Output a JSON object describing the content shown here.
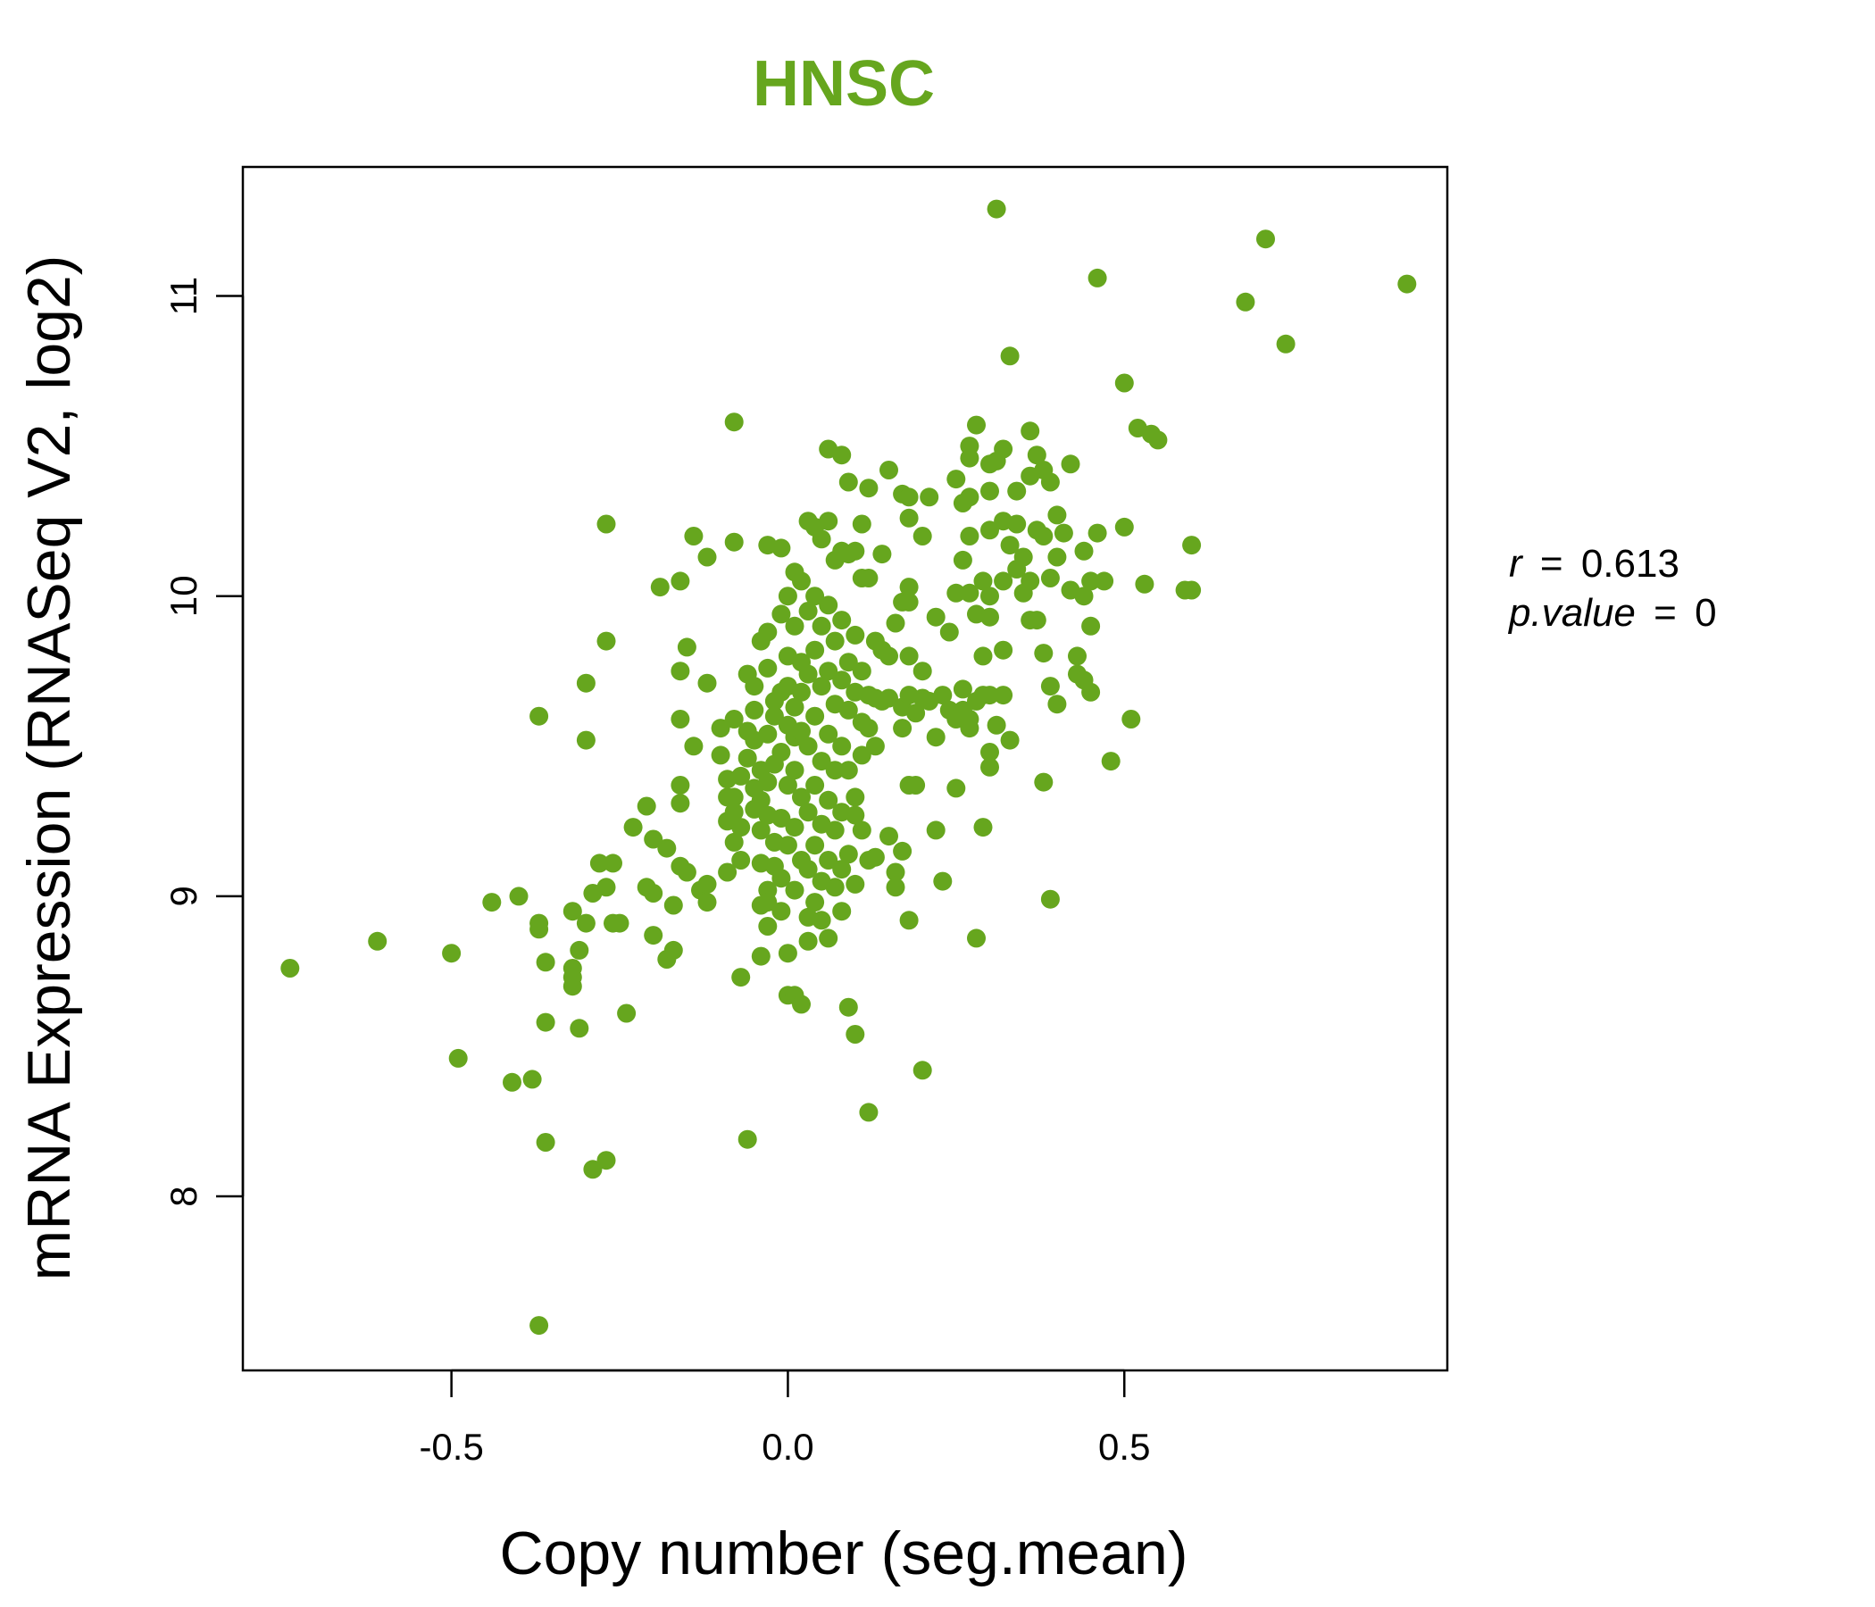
{
  "chart_data": {
    "type": "scatter",
    "title": "HNSC",
    "xlabel": "Copy number (seg.mean)",
    "ylabel": "mRNA Expression (RNASeq V2, log2)",
    "xlim": [
      -0.81,
      0.98
    ],
    "ylim": [
      7.42,
      11.43
    ],
    "xticks": [
      -0.5,
      0.0,
      0.5
    ],
    "xtick_labels": [
      "-0.5",
      "0.0",
      "0.5"
    ],
    "yticks": [
      8,
      9,
      10,
      11
    ],
    "ytick_labels": [
      "8",
      "9",
      "10",
      "11"
    ],
    "grid": false,
    "point_color": "#66a61e",
    "stats": {
      "r_symbol": "r",
      "r_value": "0.613",
      "p_symbol": "p.value",
      "p_value": "0",
      "equals": "="
    },
    "points": [
      [
        -0.74,
        8.76
      ],
      [
        -0.61,
        8.85
      ],
      [
        -0.5,
        8.81
      ],
      [
        -0.49,
        8.46
      ],
      [
        -0.44,
        8.98
      ],
      [
        -0.41,
        8.38
      ],
      [
        -0.4,
        9.0
      ],
      [
        -0.38,
        8.39
      ],
      [
        -0.37,
        8.91
      ],
      [
        -0.37,
        8.89
      ],
      [
        -0.37,
        9.6
      ],
      [
        -0.37,
        7.57
      ],
      [
        -0.36,
        8.78
      ],
      [
        -0.36,
        8.58
      ],
      [
        -0.36,
        8.18
      ],
      [
        -0.32,
        8.95
      ],
      [
        -0.32,
        8.76
      ],
      [
        -0.32,
        8.7
      ],
      [
        -0.32,
        8.73
      ],
      [
        -0.31,
        8.56
      ],
      [
        -0.31,
        8.82
      ],
      [
        -0.3,
        8.91
      ],
      [
        -0.3,
        9.52
      ],
      [
        -0.3,
        9.71
      ],
      [
        -0.29,
        9.01
      ],
      [
        -0.29,
        8.09
      ],
      [
        -0.28,
        9.11
      ],
      [
        -0.27,
        10.24
      ],
      [
        -0.27,
        9.85
      ],
      [
        -0.27,
        9.03
      ],
      [
        -0.27,
        8.12
      ],
      [
        -0.26,
        9.11
      ],
      [
        -0.26,
        8.91
      ],
      [
        -0.25,
        8.91
      ],
      [
        -0.24,
        8.61
      ],
      [
        -0.23,
        9.23
      ],
      [
        -0.21,
        9.03
      ],
      [
        -0.21,
        9.3
      ],
      [
        -0.2,
        9.01
      ],
      [
        -0.2,
        8.87
      ],
      [
        -0.2,
        9.19
      ],
      [
        -0.19,
        10.03
      ],
      [
        -0.18,
        9.16
      ],
      [
        -0.18,
        8.79
      ],
      [
        -0.17,
        8.97
      ],
      [
        -0.17,
        8.82
      ],
      [
        -0.16,
        10.05
      ],
      [
        -0.16,
        9.75
      ],
      [
        -0.16,
        9.59
      ],
      [
        -0.16,
        9.37
      ],
      [
        -0.16,
        9.31
      ],
      [
        -0.16,
        9.1
      ],
      [
        -0.15,
        9.83
      ],
      [
        -0.15,
        9.08
      ],
      [
        -0.14,
        10.2
      ],
      [
        -0.14,
        9.5
      ],
      [
        -0.13,
        9.02
      ],
      [
        -0.12,
        10.13
      ],
      [
        -0.12,
        9.71
      ],
      [
        -0.12,
        8.98
      ],
      [
        -0.12,
        9.04
      ],
      [
        -0.1,
        9.56
      ],
      [
        -0.1,
        9.47
      ],
      [
        -0.09,
        9.39
      ],
      [
        -0.09,
        9.33
      ],
      [
        -0.09,
        9.25
      ],
      [
        -0.09,
        9.08
      ],
      [
        -0.08,
        10.58
      ],
      [
        -0.08,
        10.18
      ],
      [
        -0.08,
        9.59
      ],
      [
        -0.08,
        9.33
      ],
      [
        -0.08,
        9.28
      ],
      [
        -0.08,
        9.18
      ],
      [
        -0.07,
        9.23
      ],
      [
        -0.07,
        9.4
      ],
      [
        -0.07,
        9.12
      ],
      [
        -0.07,
        8.73
      ],
      [
        -0.06,
        9.55
      ],
      [
        -0.06,
        9.46
      ],
      [
        -0.06,
        9.74
      ],
      [
        -0.06,
        8.19
      ],
      [
        -0.05,
        9.7
      ],
      [
        -0.05,
        9.62
      ],
      [
        -0.05,
        9.29
      ],
      [
        -0.05,
        9.52
      ],
      [
        -0.05,
        9.36
      ],
      [
        -0.04,
        9.85
      ],
      [
        -0.04,
        9.42
      ],
      [
        -0.04,
        9.22
      ],
      [
        -0.04,
        9.32
      ],
      [
        -0.04,
        8.97
      ],
      [
        -0.04,
        8.8
      ],
      [
        -0.04,
        9.11
      ],
      [
        -0.03,
        10.17
      ],
      [
        -0.03,
        9.88
      ],
      [
        -0.03,
        9.76
      ],
      [
        -0.03,
        9.54
      ],
      [
        -0.03,
        9.38
      ],
      [
        -0.03,
        9.27
      ],
      [
        -0.03,
        9.02
      ],
      [
        -0.03,
        8.98
      ],
      [
        -0.03,
        8.9
      ],
      [
        -0.02,
        9.65
      ],
      [
        -0.02,
        9.18
      ],
      [
        -0.02,
        9.1
      ],
      [
        -0.02,
        9.44
      ],
      [
        -0.02,
        9.6
      ],
      [
        -0.01,
        10.16
      ],
      [
        -0.01,
        9.94
      ],
      [
        -0.01,
        9.68
      ],
      [
        -0.01,
        9.48
      ],
      [
        -0.01,
        9.26
      ],
      [
        -0.01,
        9.06
      ],
      [
        -0.01,
        8.95
      ],
      [
        0.0,
        10.0
      ],
      [
        0.0,
        9.8
      ],
      [
        0.0,
        9.57
      ],
      [
        0.0,
        9.37
      ],
      [
        0.0,
        9.17
      ],
      [
        0.0,
        8.67
      ],
      [
        0.0,
        8.81
      ],
      [
        0.0,
        9.7
      ],
      [
        0.01,
        10.08
      ],
      [
        0.01,
        9.9
      ],
      [
        0.01,
        9.63
      ],
      [
        0.01,
        9.42
      ],
      [
        0.01,
        9.23
      ],
      [
        0.01,
        9.02
      ],
      [
        0.01,
        8.67
      ],
      [
        0.01,
        9.53
      ],
      [
        0.02,
        10.05
      ],
      [
        0.02,
        9.78
      ],
      [
        0.02,
        9.55
      ],
      [
        0.02,
        9.33
      ],
      [
        0.02,
        9.12
      ],
      [
        0.02,
        8.64
      ],
      [
        0.02,
        9.68
      ],
      [
        0.03,
        10.25
      ],
      [
        0.03,
        9.95
      ],
      [
        0.03,
        9.74
      ],
      [
        0.03,
        9.5
      ],
      [
        0.03,
        9.28
      ],
      [
        0.03,
        9.09
      ],
      [
        0.03,
        8.93
      ],
      [
        0.03,
        8.85
      ],
      [
        0.04,
        10.23
      ],
      [
        0.04,
        10.0
      ],
      [
        0.04,
        9.82
      ],
      [
        0.04,
        9.6
      ],
      [
        0.04,
        9.37
      ],
      [
        0.04,
        9.17
      ],
      [
        0.04,
        8.98
      ],
      [
        0.05,
        10.19
      ],
      [
        0.05,
        9.9
      ],
      [
        0.05,
        9.7
      ],
      [
        0.05,
        9.45
      ],
      [
        0.05,
        9.24
      ],
      [
        0.05,
        9.05
      ],
      [
        0.05,
        8.92
      ],
      [
        0.06,
        10.25
      ],
      [
        0.06,
        10.49
      ],
      [
        0.06,
        9.97
      ],
      [
        0.06,
        9.75
      ],
      [
        0.06,
        9.54
      ],
      [
        0.06,
        9.32
      ],
      [
        0.06,
        9.12
      ],
      [
        0.06,
        8.86
      ],
      [
        0.07,
        10.12
      ],
      [
        0.07,
        9.85
      ],
      [
        0.07,
        9.64
      ],
      [
        0.07,
        9.42
      ],
      [
        0.07,
        9.22
      ],
      [
        0.07,
        9.03
      ],
      [
        0.08,
        10.47
      ],
      [
        0.08,
        10.15
      ],
      [
        0.08,
        9.92
      ],
      [
        0.08,
        9.72
      ],
      [
        0.08,
        9.5
      ],
      [
        0.08,
        9.28
      ],
      [
        0.08,
        9.09
      ],
      [
        0.08,
        8.95
      ],
      [
        0.09,
        10.38
      ],
      [
        0.09,
        10.14
      ],
      [
        0.09,
        9.78
      ],
      [
        0.09,
        9.62
      ],
      [
        0.09,
        9.42
      ],
      [
        0.09,
        9.14
      ],
      [
        0.09,
        8.63
      ],
      [
        0.1,
        10.15
      ],
      [
        0.1,
        9.87
      ],
      [
        0.1,
        9.68
      ],
      [
        0.1,
        9.33
      ],
      [
        0.1,
        9.27
      ],
      [
        0.1,
        9.04
      ],
      [
        0.1,
        8.54
      ],
      [
        0.11,
        10.24
      ],
      [
        0.11,
        10.06
      ],
      [
        0.11,
        9.75
      ],
      [
        0.11,
        9.58
      ],
      [
        0.11,
        9.47
      ],
      [
        0.11,
        9.22
      ],
      [
        0.12,
        10.36
      ],
      [
        0.12,
        10.06
      ],
      [
        0.12,
        9.67
      ],
      [
        0.12,
        9.56
      ],
      [
        0.12,
        9.12
      ],
      [
        0.12,
        8.28
      ],
      [
        0.13,
        9.85
      ],
      [
        0.13,
        9.66
      ],
      [
        0.13,
        9.5
      ],
      [
        0.13,
        9.13
      ],
      [
        0.14,
        10.14
      ],
      [
        0.14,
        9.82
      ],
      [
        0.14,
        9.65
      ],
      [
        0.15,
        10.42
      ],
      [
        0.15,
        9.8
      ],
      [
        0.15,
        9.66
      ],
      [
        0.15,
        9.2
      ],
      [
        0.16,
        9.91
      ],
      [
        0.16,
        9.08
      ],
      [
        0.16,
        9.03
      ],
      [
        0.17,
        10.34
      ],
      [
        0.17,
        9.98
      ],
      [
        0.17,
        9.56
      ],
      [
        0.17,
        9.63
      ],
      [
        0.17,
        9.15
      ],
      [
        0.18,
        10.26
      ],
      [
        0.18,
        10.33
      ],
      [
        0.18,
        9.98
      ],
      [
        0.18,
        10.03
      ],
      [
        0.18,
        9.8
      ],
      [
        0.18,
        9.67
      ],
      [
        0.18,
        9.37
      ],
      [
        0.18,
        8.92
      ],
      [
        0.19,
        9.61
      ],
      [
        0.19,
        9.37
      ],
      [
        0.2,
        10.2
      ],
      [
        0.2,
        9.75
      ],
      [
        0.2,
        9.66
      ],
      [
        0.2,
        8.42
      ],
      [
        0.21,
        10.33
      ],
      [
        0.21,
        9.65
      ],
      [
        0.22,
        9.93
      ],
      [
        0.22,
        9.53
      ],
      [
        0.22,
        9.22
      ],
      [
        0.23,
        9.67
      ],
      [
        0.23,
        9.05
      ],
      [
        0.24,
        9.88
      ],
      [
        0.24,
        9.62
      ],
      [
        0.25,
        10.01
      ],
      [
        0.25,
        10.39
      ],
      [
        0.25,
        9.59
      ],
      [
        0.25,
        9.36
      ],
      [
        0.26,
        10.31
      ],
      [
        0.26,
        10.12
      ],
      [
        0.26,
        9.62
      ],
      [
        0.26,
        9.69
      ],
      [
        0.27,
        10.5
      ],
      [
        0.27,
        10.46
      ],
      [
        0.27,
        10.33
      ],
      [
        0.27,
        10.01
      ],
      [
        0.27,
        10.2
      ],
      [
        0.27,
        9.59
      ],
      [
        0.27,
        9.56
      ],
      [
        0.28,
        10.57
      ],
      [
        0.28,
        9.94
      ],
      [
        0.28,
        9.65
      ],
      [
        0.28,
        8.86
      ],
      [
        0.29,
        10.05
      ],
      [
        0.29,
        9.8
      ],
      [
        0.29,
        9.67
      ],
      [
        0.29,
        9.23
      ],
      [
        0.3,
        10.44
      ],
      [
        0.3,
        10.35
      ],
      [
        0.3,
        10.22
      ],
      [
        0.3,
        10.0
      ],
      [
        0.3,
        9.93
      ],
      [
        0.3,
        9.67
      ],
      [
        0.3,
        9.48
      ],
      [
        0.3,
        9.43
      ],
      [
        0.31,
        11.29
      ],
      [
        0.31,
        10.45
      ],
      [
        0.31,
        9.57
      ],
      [
        0.32,
        10.49
      ],
      [
        0.32,
        10.25
      ],
      [
        0.32,
        10.05
      ],
      [
        0.32,
        9.82
      ],
      [
        0.32,
        9.67
      ],
      [
        0.33,
        10.8
      ],
      [
        0.33,
        10.17
      ],
      [
        0.33,
        9.52
      ],
      [
        0.34,
        10.35
      ],
      [
        0.34,
        10.24
      ],
      [
        0.34,
        10.09
      ],
      [
        0.35,
        10.01
      ],
      [
        0.35,
        10.13
      ],
      [
        0.36,
        10.55
      ],
      [
        0.36,
        10.4
      ],
      [
        0.36,
        10.05
      ],
      [
        0.36,
        9.92
      ],
      [
        0.37,
        10.47
      ],
      [
        0.37,
        10.22
      ],
      [
        0.37,
        9.92
      ],
      [
        0.38,
        10.42
      ],
      [
        0.38,
        10.2
      ],
      [
        0.38,
        9.81
      ],
      [
        0.38,
        9.38
      ],
      [
        0.39,
        10.38
      ],
      [
        0.39,
        10.06
      ],
      [
        0.39,
        9.7
      ],
      [
        0.39,
        8.99
      ],
      [
        0.4,
        10.27
      ],
      [
        0.4,
        10.13
      ],
      [
        0.4,
        9.64
      ],
      [
        0.41,
        10.21
      ],
      [
        0.42,
        10.44
      ],
      [
        0.42,
        10.02
      ],
      [
        0.43,
        9.8
      ],
      [
        0.43,
        9.74
      ],
      [
        0.44,
        10.15
      ],
      [
        0.44,
        10.0
      ],
      [
        0.44,
        9.72
      ],
      [
        0.45,
        10.05
      ],
      [
        0.45,
        9.9
      ],
      [
        0.45,
        9.68
      ],
      [
        0.46,
        10.21
      ],
      [
        0.46,
        11.06
      ],
      [
        0.47,
        10.05
      ],
      [
        0.48,
        9.45
      ],
      [
        0.5,
        10.71
      ],
      [
        0.5,
        10.23
      ],
      [
        0.51,
        9.59
      ],
      [
        0.52,
        10.56
      ],
      [
        0.53,
        10.04
      ],
      [
        0.54,
        10.54
      ],
      [
        0.55,
        10.52
      ],
      [
        0.59,
        10.02
      ],
      [
        0.6,
        10.02
      ],
      [
        0.6,
        10.17
      ],
      [
        0.68,
        10.98
      ],
      [
        0.71,
        11.19
      ],
      [
        0.74,
        10.84
      ],
      [
        0.92,
        11.04
      ]
    ]
  }
}
